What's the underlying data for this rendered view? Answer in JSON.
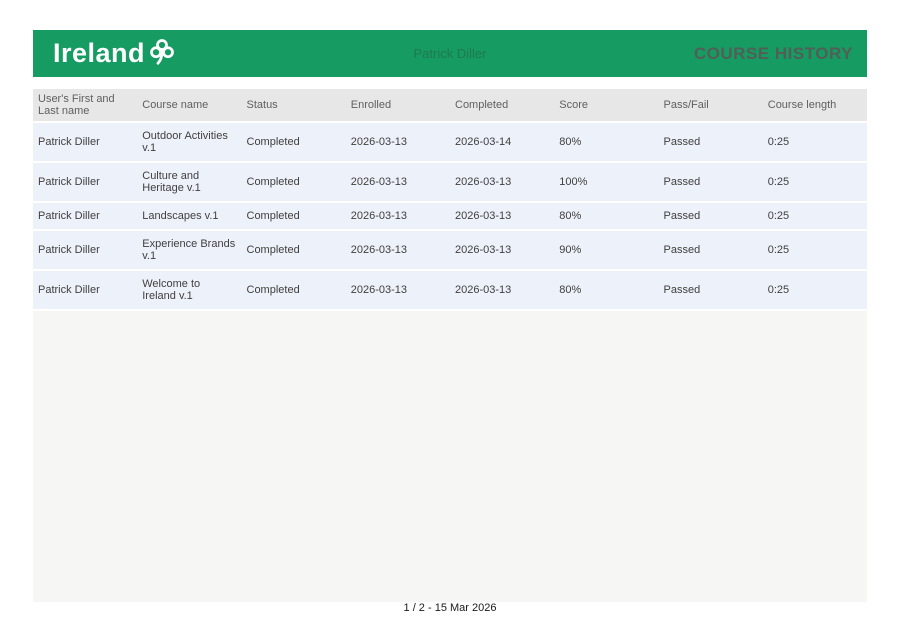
{
  "header": {
    "logo_text": "Ireland",
    "user_name": "Patrick Diller",
    "title": "COURSE HISTORY",
    "background_color": "#169b62"
  },
  "table": {
    "columns": [
      "User's First and Last name",
      "Course name",
      "Status",
      "Enrolled",
      "Completed",
      "Score",
      "Pass/Fail",
      "Course length"
    ],
    "rows": [
      [
        "Patrick Diller",
        "Outdoor Activities v.1",
        "Completed",
        "2026-03-13",
        "2026-03-14",
        "80%",
        "Passed",
        "0:25"
      ],
      [
        "Patrick Diller",
        "Culture and Heritage v.1",
        "Completed",
        "2026-03-13",
        "2026-03-13",
        "100%",
        "Passed",
        "0:25"
      ],
      [
        "Patrick Diller",
        "Landscapes v.1",
        "Completed",
        "2026-03-13",
        "2026-03-13",
        "80%",
        "Passed",
        "0:25"
      ],
      [
        "Patrick Diller",
        "Experience Brands v.1",
        "Completed",
        "2026-03-13",
        "2026-03-13",
        "90%",
        "Passed",
        "0:25"
      ],
      [
        "Patrick Diller",
        "Welcome to Ireland v.1",
        "Completed",
        "2026-03-13",
        "2026-03-13",
        "80%",
        "Passed",
        "0:25"
      ]
    ]
  },
  "footer": {
    "page_info": "1 / 2 - 15 Mar 2026"
  }
}
